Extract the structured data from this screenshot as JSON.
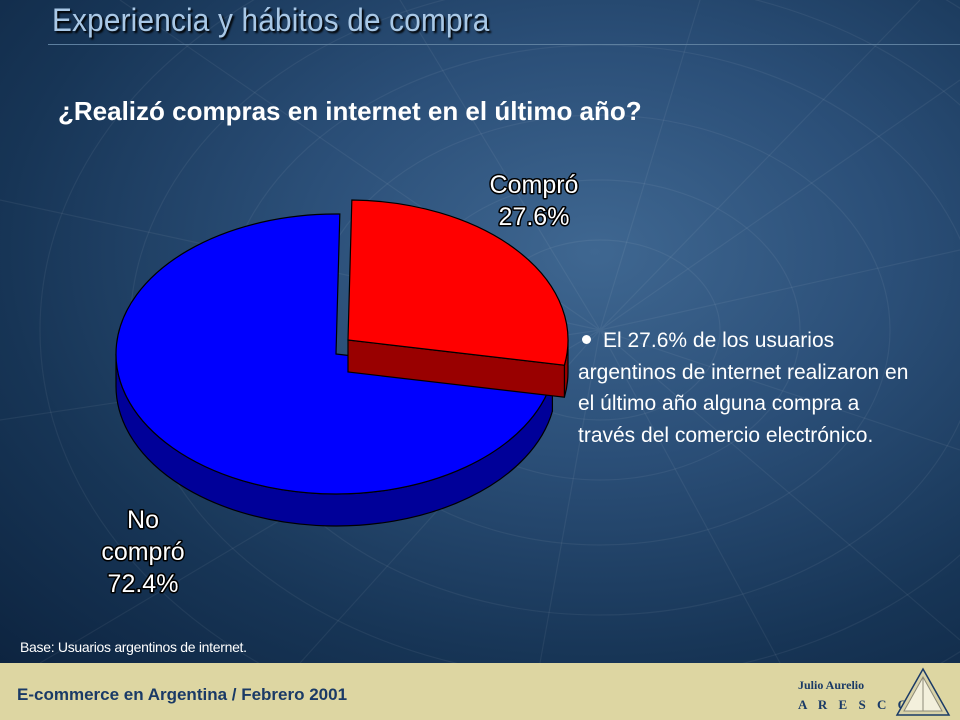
{
  "slide": {
    "title": "Experiencia y hábitos de compra",
    "question": "¿Realizó compras en internet en el último año?",
    "bullet": "El 27.6% de los usuarios argentinos de internet realizaron en el último año alguna compra a través del comercio electrónico.",
    "base_note": "Base: Usuarios argentinos de internet."
  },
  "footer": {
    "text": "E-commerce en Argentina  / Febrero 2001",
    "brand_name": "Julio Aurelio",
    "brand_org": "A R E S C O"
  },
  "chart_data": {
    "type": "pie",
    "style": "3d-exploded",
    "slices": [
      {
        "label_lines": [
          "Compró",
          "27.6%"
        ],
        "value": 27.6,
        "color": "#ff0000",
        "side_color": "#990000"
      },
      {
        "label_lines": [
          "No",
          "compró",
          "72.4%"
        ],
        "value": 72.4,
        "color": "#0000ff",
        "side_color": "#000099"
      }
    ]
  }
}
